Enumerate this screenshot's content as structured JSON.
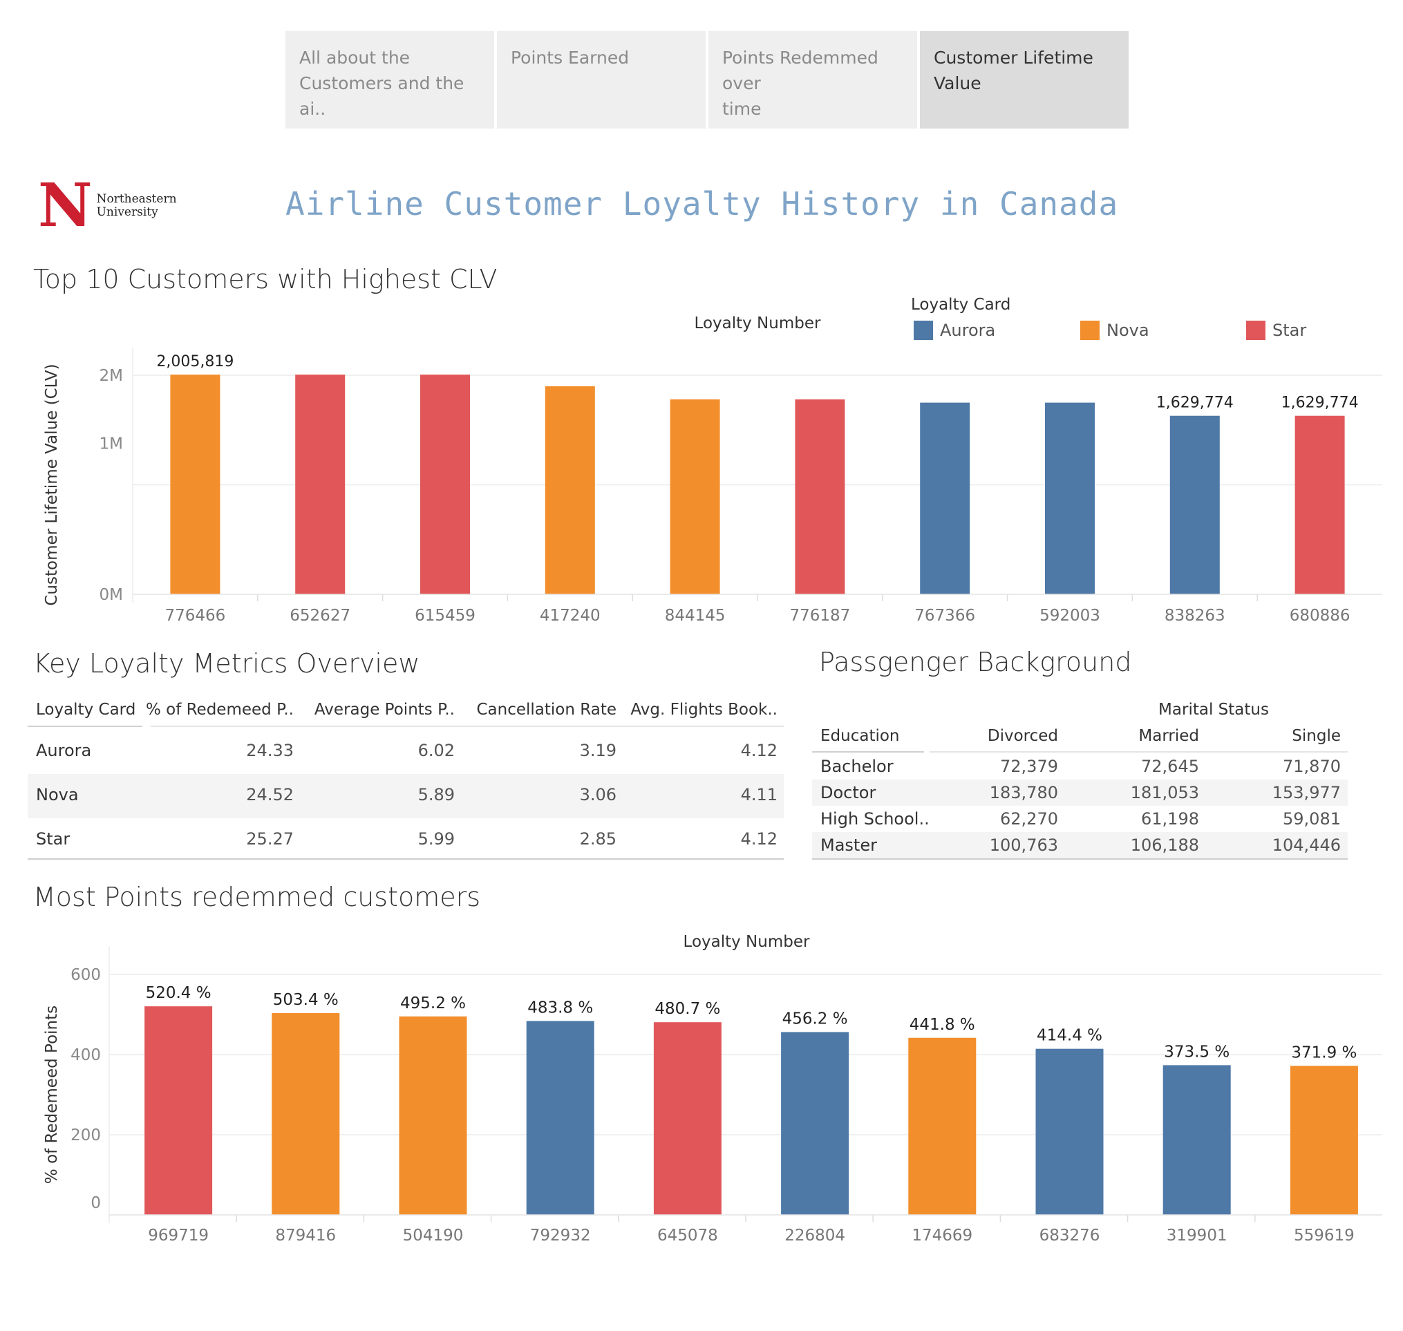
{
  "tabs": [
    {
      "label_line1": "All about the",
      "label_line2": "Customers and the ai..",
      "active": false
    },
    {
      "label_line1": "Points Earned",
      "label_line2": "",
      "active": false
    },
    {
      "label_line1": "Points Redemmed over",
      "label_line2": "time",
      "active": false
    },
    {
      "label_line1": "Customer Lifetime",
      "label_line2": "Value",
      "active": true
    }
  ],
  "logo": {
    "letter": "N",
    "line1": "Northeastern",
    "line2": "University"
  },
  "dashboard_title": "Airline Customer Loyalty History in Canada",
  "colors": {
    "Aurora": "#4e79a7",
    "Nova": "#f28e2b",
    "Star": "#e15759"
  },
  "legend": {
    "title": "Loyalty Card",
    "items": [
      "Aurora",
      "Nova",
      "Star"
    ]
  },
  "clv_section": {
    "title": "Top 10 Customers with Highest CLV",
    "chart_data": {
      "type": "bar",
      "title": "Top 10 Customers with Highest CLV",
      "xlabel": "Loyalty Number",
      "ylabel": "Customer Lifetime Value (CLV)",
      "ylim": [
        0,
        2000000
      ],
      "yticks": [
        "0M",
        "1M",
        "2M"
      ],
      "categories": [
        "776466",
        "652627",
        "615459",
        "417240",
        "844145",
        "776187",
        "767366",
        "592003",
        "838263",
        "680886"
      ],
      "values": [
        2005819,
        2005819,
        2005819,
        1900000,
        1780000,
        1780000,
        1750000,
        1750000,
        1629774,
        1629774
      ],
      "card": [
        "Nova",
        "Star",
        "Star",
        "Nova",
        "Nova",
        "Star",
        "Aurora",
        "Aurora",
        "Aurora",
        "Star"
      ],
      "data_labels": [
        "2,005,819",
        "",
        "",
        "",
        "",
        "",
        "",
        "",
        "1,629,774",
        "1,629,774"
      ],
      "grid": true
    }
  },
  "metrics_section": {
    "title": "Key Loyalty Metrics Overview",
    "headers": [
      "Loyalty Card",
      "% of Redemeed P..",
      "Average Points P..",
      "Cancellation Rate",
      "Avg. Flights Book.."
    ],
    "rows": [
      [
        "Aurora",
        "24.33",
        "6.02",
        "3.19",
        "4.12"
      ],
      [
        "Nova",
        "24.52",
        "5.89",
        "3.06",
        "4.11"
      ],
      [
        "Star",
        "25.27",
        "5.99",
        "2.85",
        "4.12"
      ]
    ]
  },
  "background_section": {
    "title": "Passgenger Background",
    "column_group": "Marital Status",
    "row_header": "Education",
    "columns": [
      "Divorced",
      "Married",
      "Single"
    ],
    "rows": [
      [
        "Bachelor",
        "72,379",
        "72,645",
        "71,870"
      ],
      [
        "Doctor",
        "183,780",
        "181,053",
        "153,977"
      ],
      [
        "High School..",
        "62,270",
        "61,198",
        "59,081"
      ],
      [
        "Master",
        "100,763",
        "106,188",
        "104,446"
      ]
    ]
  },
  "redeemed_section": {
    "title": "Most Points redemmed customers",
    "chart_data": {
      "type": "bar",
      "title": "Most Points redemmed customers",
      "xlabel": "Loyalty Number",
      "ylabel": "% of Redemeed Points",
      "ylim": [
        0,
        600
      ],
      "yticks": [
        "0",
        "200",
        "400",
        "600"
      ],
      "categories": [
        "969719",
        "879416",
        "504190",
        "792932",
        "645078",
        "226804",
        "174669",
        "683276",
        "319901",
        "559619"
      ],
      "values": [
        520.4,
        503.4,
        495.2,
        483.8,
        480.7,
        456.2,
        441.8,
        414.4,
        373.5,
        371.9
      ],
      "card": [
        "Star",
        "Nova",
        "Nova",
        "Aurora",
        "Star",
        "Aurora",
        "Nova",
        "Aurora",
        "Aurora",
        "Nova"
      ],
      "data_labels": [
        "520.4 %",
        "503.4 %",
        "495.2 %",
        "483.8 %",
        "480.7 %",
        "456.2 %",
        "441.8 %",
        "414.4 %",
        "373.5 %",
        "371.9 %"
      ],
      "grid": true
    }
  }
}
